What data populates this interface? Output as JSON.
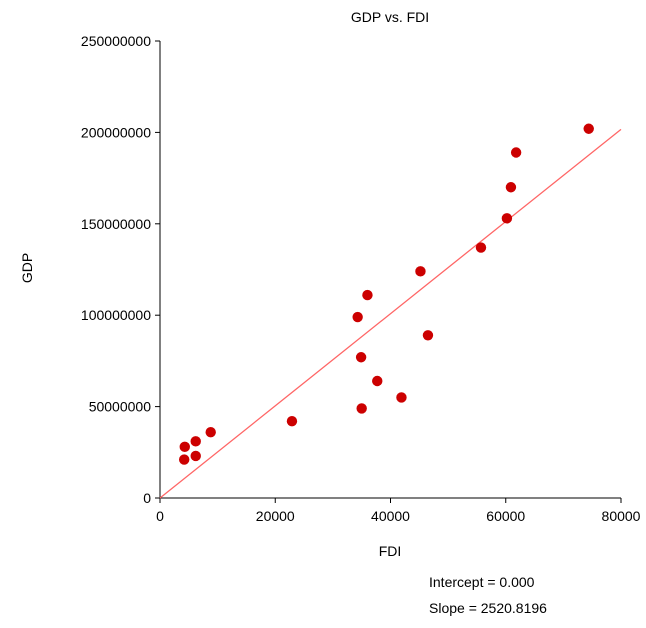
{
  "chart_data": {
    "type": "scatter",
    "title": "GDP vs. FDI",
    "xlabel": "FDI",
    "ylabel": "GDP",
    "xlim": [
      0,
      80000
    ],
    "ylim": [
      0,
      250000000
    ],
    "x_ticks": [
      "0",
      "20000",
      "40000",
      "60000",
      "80000"
    ],
    "y_ticks": [
      "0",
      "50000000",
      "100000000",
      "150000000",
      "200000000",
      "250000000"
    ],
    "grid": false,
    "legend": "none",
    "series": [
      {
        "marker_color": "#cc0000",
        "points": [
          {
            "x": 4200,
            "y": 21000000
          },
          {
            "x": 4300,
            "y": 28000000
          },
          {
            "x": 6200,
            "y": 23000000
          },
          {
            "x": 6200,
            "y": 31000000
          },
          {
            "x": 8800,
            "y": 36000000
          },
          {
            "x": 22900,
            "y": 42000000
          },
          {
            "x": 34300,
            "y": 99000000
          },
          {
            "x": 34900,
            "y": 77000000
          },
          {
            "x": 35000,
            "y": 49000000
          },
          {
            "x": 36000,
            "y": 111000000
          },
          {
            "x": 37700,
            "y": 64000000
          },
          {
            "x": 41900,
            "y": 55000000
          },
          {
            "x": 45200,
            "y": 124000000
          },
          {
            "x": 46500,
            "y": 89000000
          },
          {
            "x": 55700,
            "y": 137000000
          },
          {
            "x": 60200,
            "y": 153000000
          },
          {
            "x": 60900,
            "y": 170000000
          },
          {
            "x": 61800,
            "y": 189000000
          },
          {
            "x": 74400,
            "y": 202000000
          }
        ]
      }
    ],
    "trendline": {
      "intercept": 0,
      "slope": 2520.8196,
      "x_range": [
        0,
        80000
      ],
      "color": "#ff6666"
    },
    "annotations": {
      "intercept_text": "Intercept = 0.000",
      "slope_text": "Slope = 2520.8196"
    }
  }
}
